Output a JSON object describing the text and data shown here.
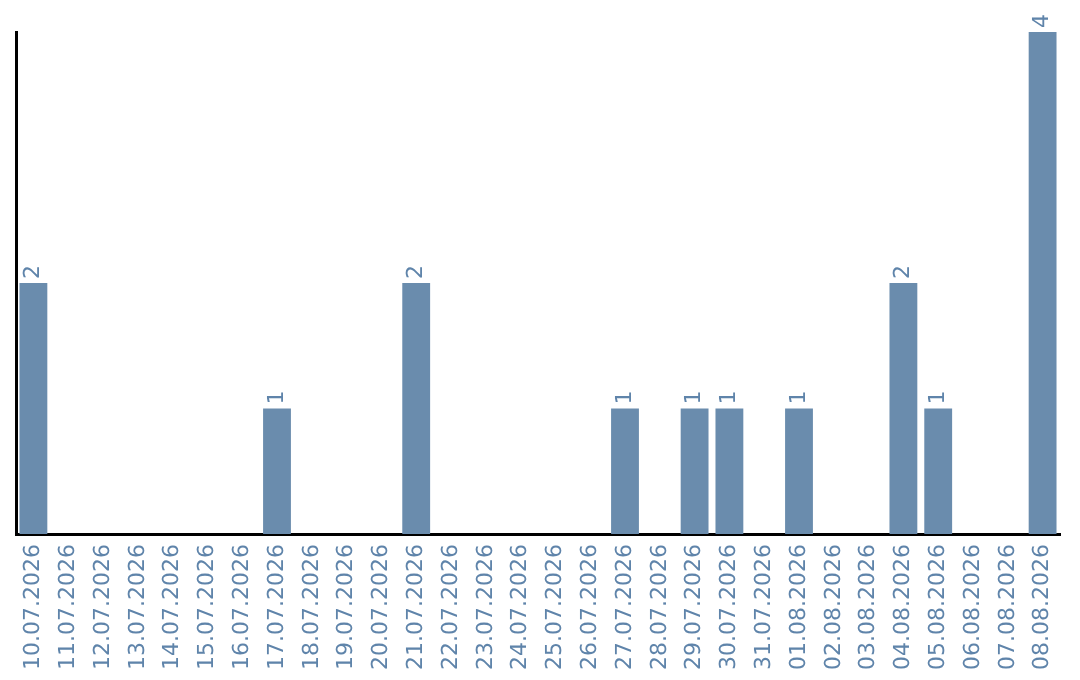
{
  "chart_data": {
    "type": "bar",
    "categories": [
      "10.07.2026",
      "11.07.2026",
      "12.07.2026",
      "13.07.2026",
      "14.07.2026",
      "15.07.2026",
      "16.07.2026",
      "17.07.2026",
      "18.07.2026",
      "19.07.2026",
      "20.07.2026",
      "21.07.2026",
      "22.07.2026",
      "23.07.2026",
      "24.07.2026",
      "25.07.2026",
      "26.07.2026",
      "27.07.2026",
      "28.07.2026",
      "29.07.2026",
      "30.07.2026",
      "31.07.2026",
      "01.08.2026",
      "02.08.2026",
      "03.08.2026",
      "04.08.2026",
      "05.08.2026",
      "06.08.2026",
      "07.08.2026",
      "08.08.2026"
    ],
    "values": [
      2,
      0,
      0,
      0,
      0,
      0,
      0,
      1,
      0,
      0,
      0,
      2,
      0,
      0,
      0,
      0,
      0,
      1,
      0,
      1,
      1,
      0,
      1,
      0,
      0,
      2,
      1,
      0,
      0,
      4
    ],
    "value_labels": [
      "2",
      null,
      null,
      null,
      null,
      null,
      null,
      "1",
      null,
      null,
      null,
      "2",
      null,
      null,
      null,
      null,
      null,
      "1",
      null,
      "1",
      "1",
      null,
      "1",
      null,
      null,
      "2",
      "1",
      null,
      null,
      "4"
    ],
    "color": "#6a8cad",
    "grid": false,
    "legend": false,
    "tick_labels": "x"
  }
}
